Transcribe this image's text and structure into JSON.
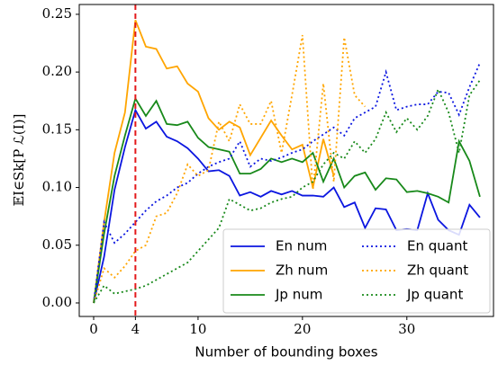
{
  "chart_data": {
    "type": "line",
    "x_label": "Number of bounding boxes",
    "y_label": "𝔼I∈Sk[P ℒ(I)]",
    "x": [
      0,
      1,
      2,
      3,
      4,
      5,
      6,
      7,
      8,
      9,
      10,
      11,
      12,
      13,
      14,
      15,
      16,
      17,
      18,
      19,
      20,
      21,
      22,
      23,
      24,
      25,
      26,
      27,
      28,
      29,
      30,
      31,
      32,
      33,
      34,
      35,
      36,
      37
    ],
    "series": [
      {
        "name": "En num",
        "color": "#0b16e0",
        "style": "solid",
        "values": [
          0,
          0.04,
          0.098,
          0.135,
          0.167,
          0.151,
          0.157,
          0.144,
          0.14,
          0.134,
          0.125,
          0.114,
          0.115,
          0.11,
          0.093,
          0.096,
          0.092,
          0.097,
          0.094,
          0.097,
          0.093,
          0.093,
          0.092,
          0.1,
          0.083,
          0.087,
          0.065,
          0.082,
          0.081,
          0.063,
          0.064,
          0.063,
          0.095,
          0.072,
          0.063,
          0.059,
          0.085,
          0.074
        ]
      },
      {
        "name": "Zh num",
        "color": "#ffa500",
        "style": "solid",
        "values": [
          0,
          0.07,
          0.13,
          0.165,
          0.245,
          0.222,
          0.22,
          0.203,
          0.205,
          0.19,
          0.183,
          0.16,
          0.15,
          0.157,
          0.152,
          0.128,
          0.143,
          0.158,
          0.145,
          0.133,
          0.137,
          0.1,
          0.142,
          0.11,
          null,
          null,
          null,
          null,
          null,
          null,
          null,
          null,
          null,
          null,
          null,
          null,
          null,
          null
        ]
      },
      {
        "name": "Jp num",
        "color": "#18891a",
        "style": "solid",
        "values": [
          0,
          0.06,
          0.11,
          0.145,
          0.177,
          0.162,
          0.175,
          0.155,
          0.154,
          0.157,
          0.143,
          0.135,
          0.133,
          0.131,
          0.112,
          0.112,
          0.116,
          0.125,
          0.122,
          0.125,
          0.122,
          0.13,
          0.105,
          0.125,
          0.1,
          0.11,
          0.113,
          0.098,
          0.108,
          0.107,
          0.096,
          0.097,
          0.095,
          0.092,
          0.087,
          0.14,
          0.123,
          0.092
        ]
      },
      {
        "name": "En quant",
        "color": "#0b16e0",
        "style": "dotted",
        "values": [
          0,
          0.07,
          0.052,
          0.06,
          0.07,
          0.08,
          0.088,
          0.093,
          0.1,
          0.104,
          0.112,
          0.118,
          0.122,
          0.125,
          0.14,
          0.118,
          0.125,
          0.123,
          0.126,
          0.13,
          0.133,
          0.14,
          0.146,
          0.152,
          0.145,
          0.16,
          0.165,
          0.17,
          0.2,
          0.167,
          0.17,
          0.172,
          0.172,
          0.183,
          0.182,
          0.163,
          0.187,
          0.208
        ]
      },
      {
        "name": "Zh quant",
        "color": "#ffa500",
        "style": "dotted",
        "values": [
          0,
          0.03,
          0.022,
          0.032,
          0.045,
          0.05,
          0.075,
          0.078,
          0.095,
          0.12,
          0.11,
          0.115,
          0.157,
          0.14,
          0.172,
          0.155,
          0.155,
          0.175,
          0.13,
          0.18,
          0.232,
          0.098,
          0.19,
          0.105,
          0.23,
          0.18,
          0.17,
          null,
          null,
          null,
          null,
          null,
          null,
          null,
          null,
          null,
          null,
          null
        ]
      },
      {
        "name": "Jp quant",
        "color": "#18891a",
        "style": "dotted",
        "values": [
          0,
          0.015,
          0.008,
          0.01,
          0.012,
          0.015,
          0.02,
          0.025,
          0.03,
          0.035,
          0.045,
          0.055,
          0.065,
          0.09,
          0.085,
          0.08,
          0.082,
          0.087,
          0.09,
          0.092,
          0.1,
          0.105,
          0.12,
          0.13,
          0.125,
          0.14,
          0.13,
          0.142,
          0.165,
          0.148,
          0.16,
          0.15,
          0.162,
          0.185,
          0.165,
          0.13,
          0.18,
          0.193
        ]
      }
    ],
    "vline": {
      "x": 4,
      "color": "#e31a1c"
    },
    "xlim": [
      -1.38,
      38.3
    ],
    "ylim": [
      -0.0117,
      0.2585
    ],
    "xticks": [
      0,
      4,
      10,
      20,
      30
    ],
    "yticks": [
      {
        "value": 0,
        "label": "0.00"
      },
      {
        "value": 0.05,
        "label": "0.05"
      },
      {
        "value": 0.1,
        "label": "0.10"
      },
      {
        "value": 0.15,
        "label": "0.15"
      },
      {
        "value": 0.2,
        "label": "0.20"
      },
      {
        "value": 0.25,
        "label": "0.25"
      }
    ],
    "legend": "lower right"
  }
}
